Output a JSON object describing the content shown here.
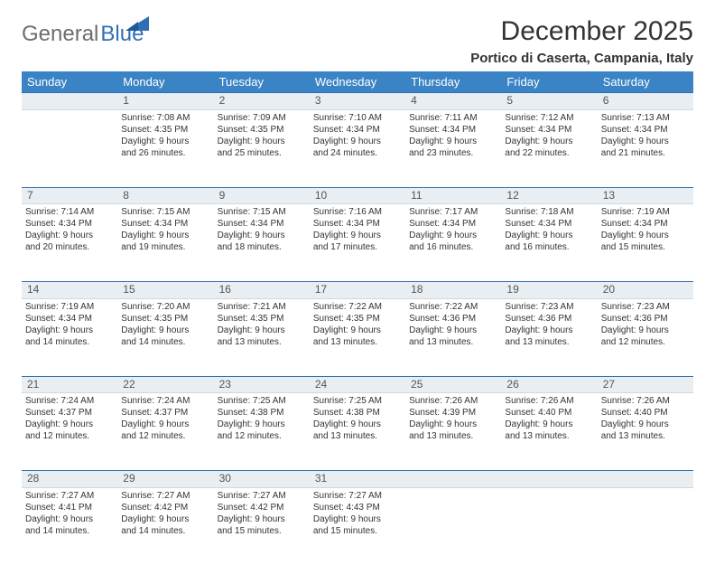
{
  "brand": {
    "general": "General",
    "blue": "Blue"
  },
  "title": "December 2025",
  "location": "Portico di Caserta, Campania, Italy",
  "colors": {
    "header_bg": "#3a84c6",
    "header_text": "#ffffff",
    "daynum_bg": "#e9eef2",
    "daynum_border_top": "#2f6fb3",
    "text": "#333333",
    "logo_gray": "#6d6d6d",
    "logo_blue": "#2f6fb3"
  },
  "weekdays": [
    "Sunday",
    "Monday",
    "Tuesday",
    "Wednesday",
    "Thursday",
    "Friday",
    "Saturday"
  ],
  "weeks": [
    {
      "nums": [
        "",
        "1",
        "2",
        "3",
        "4",
        "5",
        "6"
      ],
      "cells": [
        null,
        {
          "sr": "Sunrise: 7:08 AM",
          "ss": "Sunset: 4:35 PM",
          "d1": "Daylight: 9 hours",
          "d2": "and 26 minutes."
        },
        {
          "sr": "Sunrise: 7:09 AM",
          "ss": "Sunset: 4:35 PM",
          "d1": "Daylight: 9 hours",
          "d2": "and 25 minutes."
        },
        {
          "sr": "Sunrise: 7:10 AM",
          "ss": "Sunset: 4:34 PM",
          "d1": "Daylight: 9 hours",
          "d2": "and 24 minutes."
        },
        {
          "sr": "Sunrise: 7:11 AM",
          "ss": "Sunset: 4:34 PM",
          "d1": "Daylight: 9 hours",
          "d2": "and 23 minutes."
        },
        {
          "sr": "Sunrise: 7:12 AM",
          "ss": "Sunset: 4:34 PM",
          "d1": "Daylight: 9 hours",
          "d2": "and 22 minutes."
        },
        {
          "sr": "Sunrise: 7:13 AM",
          "ss": "Sunset: 4:34 PM",
          "d1": "Daylight: 9 hours",
          "d2": "and 21 minutes."
        }
      ]
    },
    {
      "nums": [
        "7",
        "8",
        "9",
        "10",
        "11",
        "12",
        "13"
      ],
      "cells": [
        {
          "sr": "Sunrise: 7:14 AM",
          "ss": "Sunset: 4:34 PM",
          "d1": "Daylight: 9 hours",
          "d2": "and 20 minutes."
        },
        {
          "sr": "Sunrise: 7:15 AM",
          "ss": "Sunset: 4:34 PM",
          "d1": "Daylight: 9 hours",
          "d2": "and 19 minutes."
        },
        {
          "sr": "Sunrise: 7:15 AM",
          "ss": "Sunset: 4:34 PM",
          "d1": "Daylight: 9 hours",
          "d2": "and 18 minutes."
        },
        {
          "sr": "Sunrise: 7:16 AM",
          "ss": "Sunset: 4:34 PM",
          "d1": "Daylight: 9 hours",
          "d2": "and 17 minutes."
        },
        {
          "sr": "Sunrise: 7:17 AM",
          "ss": "Sunset: 4:34 PM",
          "d1": "Daylight: 9 hours",
          "d2": "and 16 minutes."
        },
        {
          "sr": "Sunrise: 7:18 AM",
          "ss": "Sunset: 4:34 PM",
          "d1": "Daylight: 9 hours",
          "d2": "and 16 minutes."
        },
        {
          "sr": "Sunrise: 7:19 AM",
          "ss": "Sunset: 4:34 PM",
          "d1": "Daylight: 9 hours",
          "d2": "and 15 minutes."
        }
      ]
    },
    {
      "nums": [
        "14",
        "15",
        "16",
        "17",
        "18",
        "19",
        "20"
      ],
      "cells": [
        {
          "sr": "Sunrise: 7:19 AM",
          "ss": "Sunset: 4:34 PM",
          "d1": "Daylight: 9 hours",
          "d2": "and 14 minutes."
        },
        {
          "sr": "Sunrise: 7:20 AM",
          "ss": "Sunset: 4:35 PM",
          "d1": "Daylight: 9 hours",
          "d2": "and 14 minutes."
        },
        {
          "sr": "Sunrise: 7:21 AM",
          "ss": "Sunset: 4:35 PM",
          "d1": "Daylight: 9 hours",
          "d2": "and 13 minutes."
        },
        {
          "sr": "Sunrise: 7:22 AM",
          "ss": "Sunset: 4:35 PM",
          "d1": "Daylight: 9 hours",
          "d2": "and 13 minutes."
        },
        {
          "sr": "Sunrise: 7:22 AM",
          "ss": "Sunset: 4:36 PM",
          "d1": "Daylight: 9 hours",
          "d2": "and 13 minutes."
        },
        {
          "sr": "Sunrise: 7:23 AM",
          "ss": "Sunset: 4:36 PM",
          "d1": "Daylight: 9 hours",
          "d2": "and 13 minutes."
        },
        {
          "sr": "Sunrise: 7:23 AM",
          "ss": "Sunset: 4:36 PM",
          "d1": "Daylight: 9 hours",
          "d2": "and 12 minutes."
        }
      ]
    },
    {
      "nums": [
        "21",
        "22",
        "23",
        "24",
        "25",
        "26",
        "27"
      ],
      "cells": [
        {
          "sr": "Sunrise: 7:24 AM",
          "ss": "Sunset: 4:37 PM",
          "d1": "Daylight: 9 hours",
          "d2": "and 12 minutes."
        },
        {
          "sr": "Sunrise: 7:24 AM",
          "ss": "Sunset: 4:37 PM",
          "d1": "Daylight: 9 hours",
          "d2": "and 12 minutes."
        },
        {
          "sr": "Sunrise: 7:25 AM",
          "ss": "Sunset: 4:38 PM",
          "d1": "Daylight: 9 hours",
          "d2": "and 12 minutes."
        },
        {
          "sr": "Sunrise: 7:25 AM",
          "ss": "Sunset: 4:38 PM",
          "d1": "Daylight: 9 hours",
          "d2": "and 13 minutes."
        },
        {
          "sr": "Sunrise: 7:26 AM",
          "ss": "Sunset: 4:39 PM",
          "d1": "Daylight: 9 hours",
          "d2": "and 13 minutes."
        },
        {
          "sr": "Sunrise: 7:26 AM",
          "ss": "Sunset: 4:40 PM",
          "d1": "Daylight: 9 hours",
          "d2": "and 13 minutes."
        },
        {
          "sr": "Sunrise: 7:26 AM",
          "ss": "Sunset: 4:40 PM",
          "d1": "Daylight: 9 hours",
          "d2": "and 13 minutes."
        }
      ]
    },
    {
      "nums": [
        "28",
        "29",
        "30",
        "31",
        "",
        "",
        ""
      ],
      "cells": [
        {
          "sr": "Sunrise: 7:27 AM",
          "ss": "Sunset: 4:41 PM",
          "d1": "Daylight: 9 hours",
          "d2": "and 14 minutes."
        },
        {
          "sr": "Sunrise: 7:27 AM",
          "ss": "Sunset: 4:42 PM",
          "d1": "Daylight: 9 hours",
          "d2": "and 14 minutes."
        },
        {
          "sr": "Sunrise: 7:27 AM",
          "ss": "Sunset: 4:42 PM",
          "d1": "Daylight: 9 hours",
          "d2": "and 15 minutes."
        },
        {
          "sr": "Sunrise: 7:27 AM",
          "ss": "Sunset: 4:43 PM",
          "d1": "Daylight: 9 hours",
          "d2": "and 15 minutes."
        },
        null,
        null,
        null
      ]
    }
  ]
}
